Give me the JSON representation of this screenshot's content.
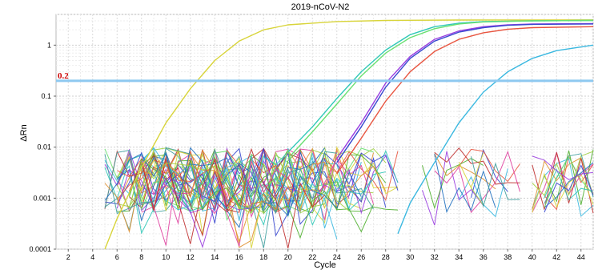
{
  "chart_data": {
    "type": "line",
    "title": "2019-nCoV-N2",
    "xlabel": "Cycle",
    "ylabel": "ΔRn",
    "yscale": "log",
    "xlim": [
      1,
      45
    ],
    "ylim": [
      0.0001,
      4
    ],
    "x_ticks": [
      2,
      4,
      6,
      8,
      10,
      12,
      14,
      16,
      18,
      20,
      22,
      24,
      26,
      28,
      30,
      32,
      34,
      36,
      38,
      40,
      42,
      44
    ],
    "y_ticks": [
      {
        "value": 0.0001,
        "label": "0.0001"
      },
      {
        "value": 0.001,
        "label": "0.001"
      },
      {
        "value": 0.01,
        "label": "0.01"
      },
      {
        "value": 0.1,
        "label": "0.1"
      },
      {
        "value": 1,
        "label": "1"
      }
    ],
    "grid": true,
    "threshold": {
      "value": 0.2,
      "label": "0.2",
      "color": "#8ec9f0"
    },
    "amplification_series": [
      {
        "color": "#d8d43a",
        "x": [
          5,
          6,
          8,
          10,
          12,
          14,
          16,
          18,
          20,
          24,
          28,
          34,
          40,
          45
        ],
        "y": [
          0.0001,
          0.0004,
          0.004,
          0.03,
          0.14,
          0.5,
          1.2,
          2.0,
          2.5,
          2.9,
          3.05,
          3.1,
          3.12,
          3.13
        ]
      },
      {
        "color": "#30c8b8",
        "x": [
          20,
          22,
          24,
          26,
          28,
          30,
          32,
          34,
          36,
          40,
          45
        ],
        "y": [
          0.008,
          0.025,
          0.09,
          0.3,
          0.8,
          1.6,
          2.3,
          2.7,
          2.9,
          3.0,
          3.05
        ]
      },
      {
        "color": "#68e070",
        "x": [
          20,
          22,
          24,
          26,
          28,
          30,
          32,
          34,
          36,
          40,
          45
        ],
        "y": [
          0.006,
          0.02,
          0.07,
          0.25,
          0.7,
          1.4,
          2.1,
          2.6,
          2.85,
          3.0,
          3.05
        ]
      },
      {
        "color": "#9a3ee0",
        "x": [
          24,
          26,
          28,
          30,
          32,
          34,
          36,
          38,
          40,
          45
        ],
        "y": [
          0.006,
          0.03,
          0.18,
          0.6,
          1.3,
          1.9,
          2.3,
          2.5,
          2.6,
          2.65
        ]
      },
      {
        "color": "#3848d0",
        "x": [
          24,
          26,
          28,
          30,
          32,
          34,
          36,
          38,
          40,
          45
        ],
        "y": [
          0.005,
          0.025,
          0.15,
          0.55,
          1.2,
          1.8,
          2.2,
          2.45,
          2.55,
          2.6
        ]
      },
      {
        "color": "#e85540",
        "x": [
          24,
          26,
          28,
          30,
          32,
          34,
          36,
          38,
          40,
          45
        ],
        "y": [
          0.003,
          0.015,
          0.08,
          0.3,
          0.75,
          1.3,
          1.75,
          2.05,
          2.2,
          2.3
        ]
      },
      {
        "color": "#3ab8e0",
        "x": [
          29,
          30,
          32,
          34,
          36,
          38,
          40,
          42,
          45
        ],
        "y": [
          0.0002,
          0.0008,
          0.005,
          0.03,
          0.12,
          0.3,
          0.55,
          0.78,
          1.0
        ]
      }
    ],
    "noise_band": {
      "x_range": [
        5,
        45
      ],
      "y_range": [
        0.0001,
        0.015
      ],
      "note_key": ""
    }
  }
}
